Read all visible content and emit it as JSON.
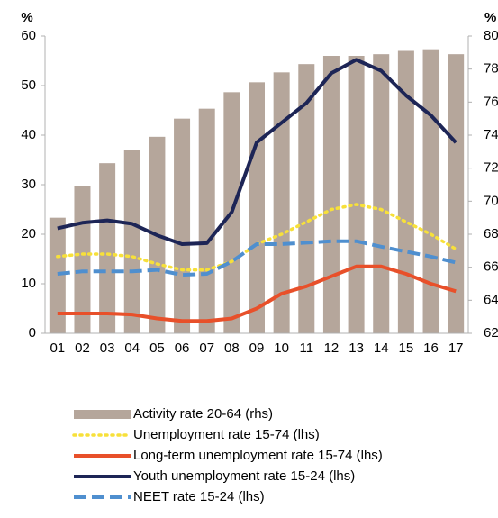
{
  "chart_data": {
    "type": "bar_line",
    "ylabel": "%",
    "y2label": "%",
    "categories": [
      "01",
      "02",
      "03",
      "04",
      "05",
      "06",
      "07",
      "08",
      "09",
      "10",
      "11",
      "12",
      "13",
      "14",
      "15",
      "16",
      "17"
    ],
    "ylim": [
      0,
      60
    ],
    "yticks": [
      0,
      10,
      20,
      30,
      40,
      50,
      60
    ],
    "y2lim": [
      62,
      80
    ],
    "y2ticks": [
      62,
      64,
      66,
      68,
      70,
      72,
      74,
      76,
      78,
      80
    ],
    "series": [
      {
        "name": "Activity rate 20-64 (rhs)",
        "type": "bar",
        "axis": "y2",
        "color": "#b5a69b",
        "values": [
          69.0,
          70.9,
          72.3,
          73.1,
          73.9,
          75.0,
          75.6,
          76.6,
          77.2,
          77.8,
          78.3,
          78.8,
          78.8,
          78.9,
          79.1,
          79.2,
          78.9
        ]
      },
      {
        "name": "Unemployment rate 15-74 (lhs)",
        "type": "line",
        "style": "dotted",
        "color": "#f7e03a",
        "values": [
          15.5,
          16.0,
          16.0,
          15.5,
          14.0,
          12.8,
          12.8,
          14.5,
          18.0,
          20.0,
          22.5,
          25.0,
          26.0,
          25.0,
          22.5,
          20.0,
          17.0
        ]
      },
      {
        "name": "Long-term unemployment rate 15-74 (lhs)",
        "type": "line",
        "style": "solid",
        "color": "#e8502a",
        "values": [
          4.0,
          4.0,
          4.0,
          3.8,
          3.0,
          2.5,
          2.5,
          3.0,
          5.0,
          8.0,
          9.5,
          11.5,
          13.5,
          13.5,
          12.0,
          10.0,
          8.5
        ]
      },
      {
        "name": "Youth unemployment rate 15-24 (lhs)",
        "type": "line",
        "style": "solid",
        "color": "#1d2556",
        "values": [
          21.2,
          22.3,
          22.8,
          22.1,
          19.8,
          18.0,
          18.2,
          24.5,
          38.5,
          42.5,
          46.5,
          52.5,
          55.2,
          53.0,
          48.0,
          44.0,
          38.5
        ]
      },
      {
        "name": "NEET rate 15-24 (lhs)",
        "type": "line",
        "style": "dashed",
        "color": "#4f8fcf",
        "values": [
          12.0,
          12.5,
          12.5,
          12.5,
          12.8,
          11.8,
          12.0,
          14.5,
          18.0,
          18.0,
          18.3,
          18.6,
          18.6,
          17.5,
          16.5,
          15.5,
          14.3
        ]
      }
    ]
  }
}
